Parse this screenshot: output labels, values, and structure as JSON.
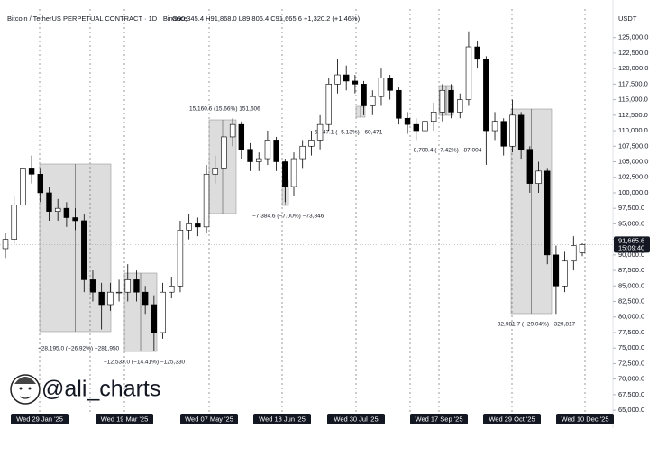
{
  "chart_data": {
    "type": "candlestick",
    "title": "Bitcoin / TetherUS PERPETUAL CONTRACT · 1D · Binance",
    "ohlc_text": "O90,345.4 H91,868.0 L89,806.4 C91,665.6 +1,320.2 (+1.46%)",
    "y_axis_label": "USDT",
    "up_color": "#ffffff",
    "down_color": "#000000",
    "ylim": [
      64000,
      129600
    ],
    "yticks": [
      {
        "value": 65000,
        "label": "65,000.0"
      },
      {
        "value": 67500,
        "label": "67,500.0"
      },
      {
        "value": 70000,
        "label": "70,000.0"
      },
      {
        "value": 72500,
        "label": "72,500.0"
      },
      {
        "value": 75000,
        "label": "75,000.0"
      },
      {
        "value": 77500,
        "label": "77,500.0"
      },
      {
        "value": 80000,
        "label": "80,000.0"
      },
      {
        "value": 82500,
        "label": "82,500.0"
      },
      {
        "value": 85000,
        "label": "85,000.0"
      },
      {
        "value": 87500,
        "label": "87,500.0"
      },
      {
        "value": 90000,
        "label": "90,000.0"
      },
      {
        "value": 92500,
        "label": "92,500.0"
      },
      {
        "value": 95000,
        "label": "95,000.0"
      },
      {
        "value": 97500,
        "label": "97,500.0"
      },
      {
        "value": 100000,
        "label": "100,000.0"
      },
      {
        "value": 102500,
        "label": "102,500.0"
      },
      {
        "value": 105000,
        "label": "105,000.0"
      },
      {
        "value": 107500,
        "label": "107,500.0"
      },
      {
        "value": 110000,
        "label": "110,000.0"
      },
      {
        "value": 112500,
        "label": "112,500.0"
      },
      {
        "value": 115000,
        "label": "115,000.0"
      },
      {
        "value": 117500,
        "label": "117,500.0"
      },
      {
        "value": 120000,
        "label": "120,000.0"
      },
      {
        "value": 122500,
        "label": "122,500.0"
      },
      {
        "value": 125000,
        "label": "125,000.0"
      }
    ],
    "date_labels": [
      "Wed 29 Jan '25",
      "Wed 19 Mar '25",
      "Wed 07 May '25",
      "Wed 18 Jun '25",
      "Wed 30 Jul '25",
      "Wed 17 Sep '25",
      "Wed 29 Oct '25",
      "Wed 10 Dec '25"
    ],
    "open": [
      91000,
      92500,
      98000,
      104000,
      103000,
      100000,
      97000,
      97500,
      96000,
      95500,
      86000,
      84000,
      82000,
      84000,
      84000,
      86000,
      84000,
      82000,
      77500,
      84000,
      85000,
      94000,
      95000,
      94500,
      103000,
      104000,
      109000,
      111000,
      107000,
      105000,
      105500,
      108500,
      105000,
      101000,
      105500,
      107500,
      108500,
      111000,
      117500,
      119000,
      118000,
      117500,
      114000,
      115500,
      118500,
      116500,
      112000,
      111000,
      110000,
      111500,
      113000,
      116500,
      113000,
      115000,
      123500,
      121500,
      110000,
      111500,
      107500,
      112500,
      107000,
      101500,
      103500,
      90000,
      85000,
      89000,
      90345.4
    ],
    "high": [
      93500,
      99500,
      108000,
      106000,
      104000,
      101000,
      99000,
      98500,
      97500,
      96500,
      87500,
      85500,
      85500,
      86000,
      88500,
      87500,
      85000,
      83500,
      85500,
      86500,
      95500,
      96500,
      96000,
      104500,
      106000,
      110500,
      112000,
      111500,
      108000,
      106500,
      110000,
      109000,
      105500,
      106500,
      108500,
      110000,
      112500,
      118500,
      121500,
      120500,
      119000,
      118000,
      116500,
      120000,
      119000,
      117000,
      113000,
      112000,
      112500,
      114500,
      117500,
      117500,
      116000,
      126000,
      124500,
      122000,
      113000,
      112000,
      115000,
      113000,
      107500,
      105000,
      104000,
      91500,
      90500,
      93000,
      91868
    ],
    "low": [
      89500,
      91500,
      97000,
      101500,
      98500,
      95500,
      95500,
      94500,
      94000,
      84000,
      82500,
      78000,
      81000,
      82500,
      82500,
      82500,
      80500,
      74500,
      76500,
      83000,
      84000,
      92500,
      93000,
      93500,
      101500,
      102500,
      107500,
      105500,
      103500,
      103500,
      104500,
      103500,
      98500,
      99500,
      104000,
      106000,
      107000,
      110000,
      116000,
      116500,
      116000,
      112500,
      112500,
      114000,
      115000,
      111000,
      109500,
      108500,
      108500,
      110000,
      111500,
      112000,
      112000,
      114000,
      120000,
      104500,
      108500,
      106000,
      106500,
      105500,
      100000,
      100000,
      88500,
      80500,
      84000,
      87500,
      89806.4
    ],
    "close": [
      92500,
      98000,
      104000,
      103000,
      100000,
      97000,
      97500,
      96000,
      95500,
      86000,
      84000,
      82000,
      84000,
      84000,
      86000,
      84000,
      82000,
      77500,
      84000,
      85000,
      94000,
      95000,
      94500,
      103000,
      104000,
      109000,
      111000,
      107000,
      105000,
      105500,
      108500,
      105000,
      101000,
      105500,
      107500,
      108500,
      111000,
      117500,
      119000,
      118000,
      117500,
      114000,
      115500,
      118500,
      116500,
      112000,
      111000,
      110000,
      111500,
      113000,
      116500,
      113000,
      115000,
      123500,
      121500,
      110000,
      111500,
      107500,
      112500,
      107000,
      101500,
      103500,
      90000,
      85000,
      89000,
      91500,
      91665.6
    ],
    "last_price": {
      "value": 91665.6,
      "label": "91,665.6"
    },
    "countdown": "15:09:40",
    "measurements": [
      "−28,195.0 (−26.92%) −281,950",
      "−12,533.0 (−14.41%) −125,330",
      "15,160.6 (15.66%) 151,606",
      "−7,384.6 (−7.00%) −73,846",
      "−6,047.1 (−5.13%) −60,471",
      "−8,700.4 (−7.42%) −87,004",
      "−32,981.7 (−29.04%) −329,817"
    ],
    "watermark": "@ali_charts"
  }
}
